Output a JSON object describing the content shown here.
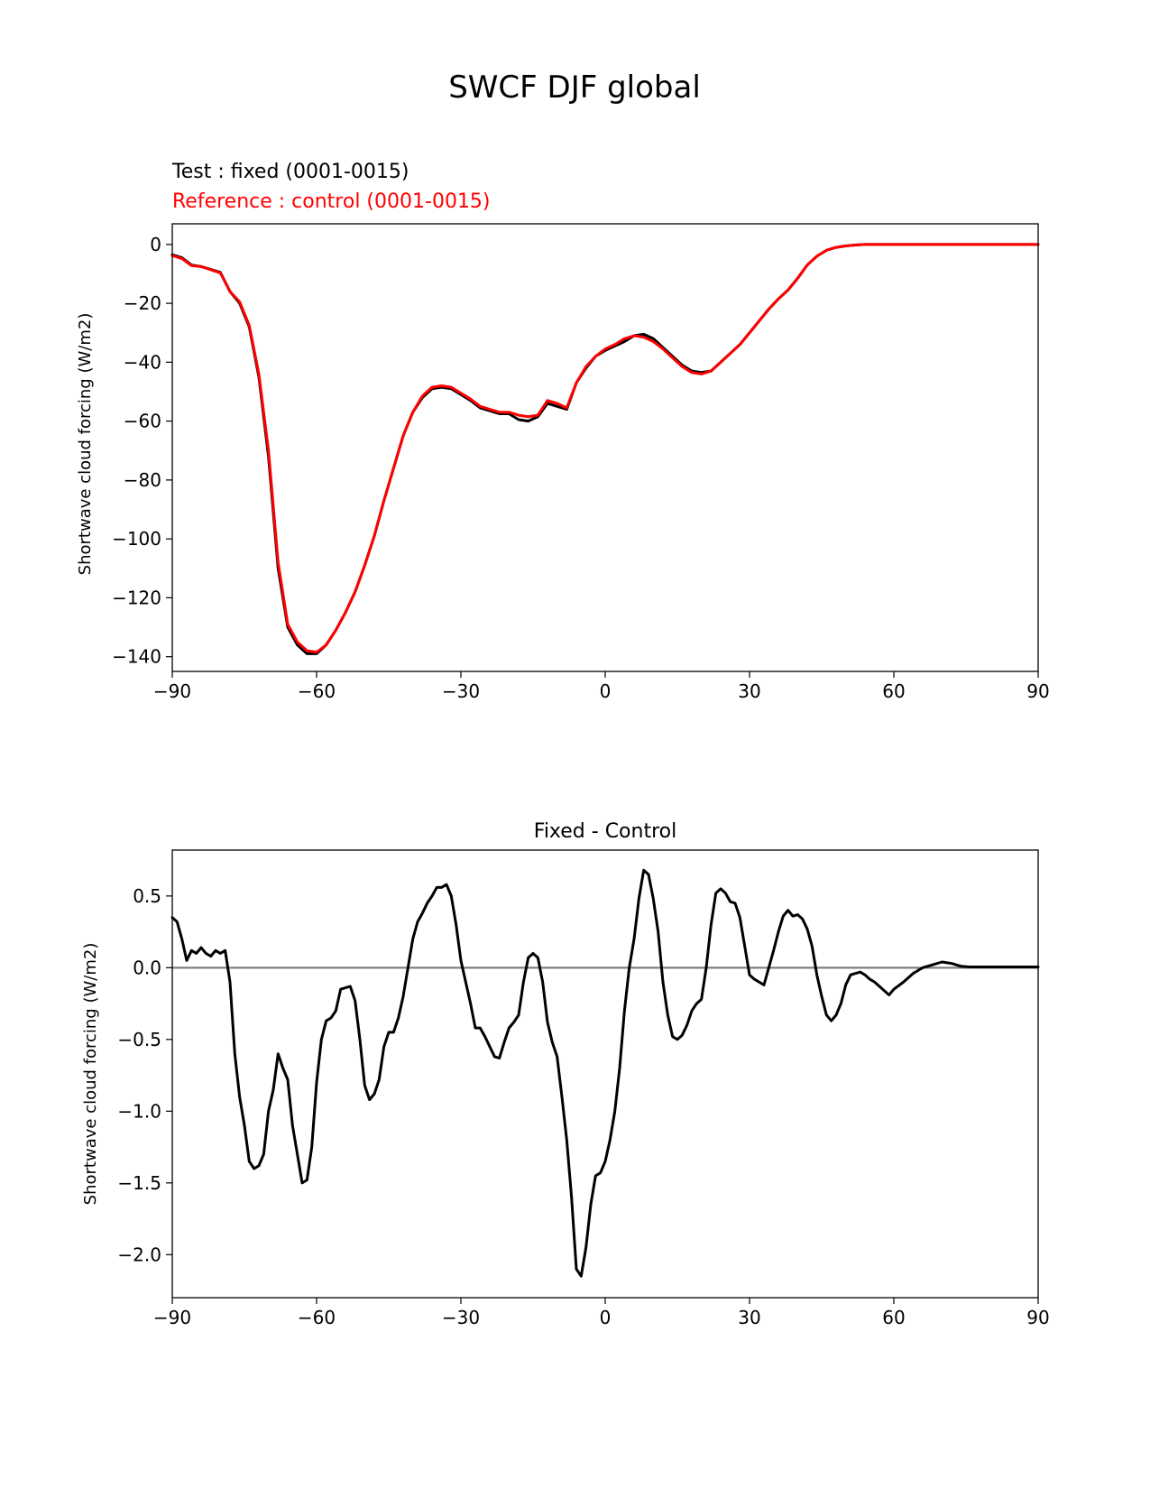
{
  "figure": {
    "title": "SWCF DJF global"
  },
  "chart_data": [
    {
      "type": "line",
      "title_test": "Test : fixed (0001-0015)",
      "title_reference": "Reference : control (0001-0015)",
      "title_reference_color": "#ff0000",
      "xlabel": "",
      "ylabel": "Shortwave cloud forcing (W/m2)",
      "xlim": [
        -90,
        90
      ],
      "ylim": [
        -145,
        7
      ],
      "xticks": [
        -90,
        -60,
        -30,
        0,
        30,
        60,
        90
      ],
      "yticks": [
        0,
        -20,
        -40,
        -60,
        -80,
        -100,
        -120,
        -140
      ],
      "grid": false,
      "x": [
        -90,
        -88,
        -86,
        -84,
        -82,
        -80,
        -78,
        -76,
        -74,
        -72,
        -70,
        -68,
        -66,
        -64,
        -62,
        -60,
        -58,
        -56,
        -54,
        -52,
        -50,
        -48,
        -46,
        -44,
        -42,
        -40,
        -38,
        -36,
        -34,
        -32,
        -30,
        -28,
        -26,
        -24,
        -22,
        -20,
        -18,
        -16,
        -14,
        -12,
        -10,
        -8,
        -6,
        -4,
        -2,
        0,
        2,
        4,
        6,
        8,
        10,
        12,
        14,
        16,
        18,
        20,
        22,
        24,
        26,
        28,
        30,
        32,
        34,
        36,
        38,
        40,
        42,
        44,
        46,
        48,
        50,
        52,
        54,
        56,
        58,
        60,
        62,
        64,
        66,
        68,
        70,
        72,
        74,
        76,
        78,
        80,
        82,
        84,
        86,
        88,
        90
      ],
      "series": [
        {
          "name": "Test : fixed (0001-0015)",
          "color": "#000000",
          "values": [
            -3.5,
            -4.5,
            -7,
            -7.5,
            -8.5,
            -9.5,
            -16,
            -20,
            -28,
            -45,
            -72,
            -110,
            -130,
            -136,
            -139,
            -139,
            -136,
            -131,
            -125,
            -118,
            -109,
            -99,
            -87,
            -76,
            -65,
            -57,
            -52,
            -49,
            -48.5,
            -49,
            -51,
            -53,
            -55.5,
            -56.5,
            -57.5,
            -57.5,
            -59.5,
            -60,
            -58.5,
            -54,
            -55,
            -56,
            -47,
            -42,
            -38,
            -36,
            -34.5,
            -33,
            -31,
            -30.5,
            -32,
            -35,
            -38,
            -41,
            -43,
            -43.5,
            -43,
            -40,
            -37,
            -34,
            -30,
            -26,
            -22,
            -18.5,
            -15.5,
            -11.5,
            -7,
            -4,
            -2,
            -1,
            -0.5,
            -0.2,
            0,
            0,
            0,
            0,
            0,
            0,
            0,
            0,
            0,
            0,
            0,
            0,
            0,
            0,
            0,
            0,
            0,
            0,
            0
          ]
        },
        {
          "name": "Reference : control (0001-0015)",
          "color": "#ff0000",
          "values": [
            -3.8,
            -4.8,
            -7.2,
            -7.5,
            -8.6,
            -9.7,
            -16,
            -19.5,
            -27.5,
            -44,
            -70,
            -108,
            -129,
            -135,
            -138,
            -138.5,
            -136,
            -131,
            -125,
            -118,
            -109,
            -99,
            -87,
            -76,
            -65,
            -57,
            -51.5,
            -48.5,
            -48,
            -48.5,
            -50.5,
            -52.5,
            -55,
            -56,
            -57,
            -57,
            -58,
            -58.5,
            -58,
            -53,
            -54,
            -55.5,
            -47,
            -41.5,
            -38,
            -35.5,
            -34,
            -32,
            -31,
            -31.5,
            -33,
            -35.5,
            -38.5,
            -41.5,
            -43.5,
            -44,
            -43,
            -40,
            -37,
            -34,
            -30,
            -26,
            -22,
            -18.5,
            -15.5,
            -11.5,
            -7,
            -4,
            -2,
            -1,
            -0.5,
            -0.2,
            0,
            0,
            0,
            0,
            0,
            0,
            0,
            0,
            0,
            0,
            0,
            0,
            0,
            0,
            0,
            0,
            0,
            0,
            0
          ]
        }
      ]
    },
    {
      "type": "line",
      "title": "Fixed - Control",
      "xlabel": "",
      "ylabel": "Shortwave cloud forcing (W/m2)",
      "xlim": [
        -90,
        90
      ],
      "ylim": [
        -2.3,
        0.82
      ],
      "xticks": [
        -90,
        -60,
        -30,
        0,
        30,
        60,
        90
      ],
      "yticks": [
        0.5,
        0.0,
        -0.5,
        -1.0,
        -1.5,
        -2.0
      ],
      "ytick_labels": [
        "0.5",
        "0.0",
        "−0.5",
        "−1.0",
        "−1.5",
        "−2.0"
      ],
      "grid": false,
      "zero_line_color": "#808080",
      "x": [
        -90,
        -89,
        -88,
        -87,
        -86,
        -85,
        -84,
        -83,
        -82,
        -81,
        -80,
        -79,
        -78,
        -77,
        -76,
        -75,
        -74,
        -73,
        -72,
        -71,
        -70,
        -69,
        -68,
        -67,
        -66,
        -65,
        -64,
        -63,
        -62,
        -61,
        -60,
        -59,
        -58,
        -57,
        -56,
        -55,
        -54,
        -53,
        -52,
        -51,
        -50,
        -49,
        -48,
        -47,
        -46,
        -45,
        -44,
        -43,
        -42,
        -41,
        -40,
        -39,
        -38,
        -37,
        -36,
        -35,
        -34,
        -33,
        -32,
        -31,
        -30,
        -29,
        -28,
        -27,
        -26,
        -25,
        -24,
        -23,
        -22,
        -21,
        -20,
        -19,
        -18,
        -17,
        -16,
        -15,
        -14,
        -13,
        -12,
        -11,
        -10,
        -9,
        -8,
        -7,
        -6,
        -5,
        -4,
        -3,
        -2,
        -1,
        0,
        1,
        2,
        3,
        4,
        5,
        6,
        7,
        8,
        9,
        10,
        11,
        12,
        13,
        14,
        15,
        16,
        17,
        18,
        19,
        20,
        21,
        22,
        23,
        24,
        25,
        26,
        27,
        28,
        29,
        30,
        31,
        32,
        33,
        34,
        35,
        36,
        37,
        38,
        39,
        40,
        41,
        42,
        43,
        44,
        45,
        46,
        47,
        48,
        49,
        50,
        51,
        52,
        53,
        54,
        55,
        56,
        57,
        58,
        59,
        60,
        62,
        64,
        66,
        68,
        70,
        72,
        74,
        76,
        78,
        80,
        82,
        84,
        86,
        88,
        90
      ],
      "series": [
        {
          "name": "",
          "color": "#000000",
          "values": [
            0.35,
            0.32,
            0.2,
            0.05,
            0.12,
            0.1,
            0.14,
            0.1,
            0.08,
            0.12,
            0.1,
            0.12,
            -0.1,
            -0.6,
            -0.9,
            -1.1,
            -1.35,
            -1.4,
            -1.38,
            -1.3,
            -1.0,
            -0.85,
            -0.6,
            -0.7,
            -0.78,
            -1.1,
            -1.3,
            -1.5,
            -1.48,
            -1.25,
            -0.8,
            -0.5,
            -0.37,
            -0.35,
            -0.3,
            -0.15,
            -0.14,
            -0.13,
            -0.23,
            -0.5,
            -0.82,
            -0.92,
            -0.88,
            -0.78,
            -0.55,
            -0.45,
            -0.45,
            -0.35,
            -0.2,
            0.0,
            0.2,
            0.32,
            0.38,
            0.45,
            0.5,
            0.56,
            0.56,
            0.58,
            0.5,
            0.3,
            0.05,
            -0.1,
            -0.25,
            -0.42,
            -0.42,
            -0.48,
            -0.55,
            -0.62,
            -0.63,
            -0.52,
            -0.42,
            -0.38,
            -0.33,
            -0.1,
            0.07,
            0.1,
            0.07,
            -0.1,
            -0.38,
            -0.52,
            -0.62,
            -0.9,
            -1.2,
            -1.6,
            -2.1,
            -2.15,
            -1.95,
            -1.65,
            -1.45,
            -1.43,
            -1.35,
            -1.2,
            -1.0,
            -0.7,
            -0.3,
            0.0,
            0.2,
            0.48,
            0.68,
            0.65,
            0.48,
            0.25,
            -0.1,
            -0.33,
            -0.48,
            -0.5,
            -0.47,
            -0.4,
            -0.3,
            -0.25,
            -0.22,
            0.0,
            0.3,
            0.52,
            0.55,
            0.52,
            0.46,
            0.45,
            0.35,
            0.15,
            -0.05,
            -0.08,
            -0.1,
            -0.12,
            0.0,
            0.12,
            0.25,
            0.36,
            0.4,
            0.36,
            0.37,
            0.34,
            0.27,
            0.15,
            -0.05,
            -0.2,
            -0.33,
            -0.37,
            -0.33,
            -0.25,
            -0.12,
            -0.05,
            -0.04,
            -0.03,
            -0.05,
            -0.08,
            -0.1,
            -0.13,
            -0.16,
            -0.19,
            -0.15,
            -0.1,
            -0.04,
            0.0,
            0.02,
            0.04,
            0.03,
            0.01,
            0.005,
            0.005,
            0.005,
            0.005,
            0.005,
            0.005,
            0.005,
            0.005
          ]
        }
      ]
    }
  ]
}
